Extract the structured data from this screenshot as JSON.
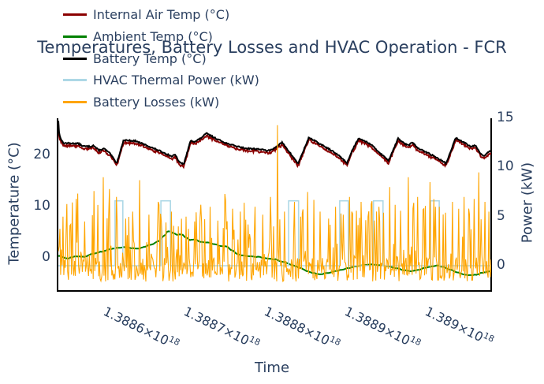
{
  "chart_data": {
    "type": "line",
    "title": "Temperatures, Battery Losses and HVAC Operation - FCR",
    "font_color": "#2a3f5f",
    "axis_line_color": "#000000",
    "plot_background": "#ffffff",
    "grid": "off",
    "legend_position": "top-left",
    "xaxis": {
      "title": "Time",
      "tick_angle_deg": 26,
      "tick_values": [
        "1.3886e18",
        "1.3887e18",
        "1.3888e18",
        "1.3889e18",
        "1.389e18"
      ],
      "ticks": [
        {
          "base": "1.3886×10",
          "exp": "18",
          "anchor_frac": 0.115
        },
        {
          "base": "1.3887×10",
          "exp": "18",
          "anchor_frac": 0.3
        },
        {
          "base": "1.3888×10",
          "exp": "18",
          "anchor_frac": 0.486
        },
        {
          "base": "1.3889×10",
          "exp": "18",
          "anchor_frac": 0.672
        },
        {
          "base": "1.389×10",
          "exp": "18",
          "anchor_frac": 0.858
        }
      ]
    },
    "yaxis_left": {
      "title": "Temperature (°C)",
      "ticks": [
        0,
        10,
        20
      ],
      "range": [
        -6.5,
        27.2
      ]
    },
    "yaxis_right": {
      "title": "Power (kW)",
      "ticks": [
        0,
        5,
        10,
        15
      ],
      "range": [
        -2.6,
        15.0
      ]
    },
    "series": [
      {
        "name": "internal-air-temp",
        "legend_label": "Internal Air Temp (°C)",
        "color": "#8B0000",
        "axis": "left",
        "line_width": 2,
        "render": "keypoints",
        "keypoints_ref": "battery-temp",
        "offset": -0.28,
        "extra_drop": 0.35,
        "jitter": 0.12,
        "seed": 7,
        "samples": 620
      },
      {
        "name": "ambient-temp",
        "legend_label": "Ambient Temp (°C)",
        "color": "#008000",
        "axis": "left",
        "line_width": 2,
        "render": "keypoints",
        "smooth": true,
        "jitter": 0.05,
        "seed": 5,
        "samples": 320,
        "keypoints": [
          [
            0.0,
            0.4
          ],
          [
            0.02,
            -0.1
          ],
          [
            0.04,
            0.3
          ],
          [
            0.06,
            0.2
          ],
          [
            0.08,
            0.8
          ],
          [
            0.1,
            1.2
          ],
          [
            0.12,
            1.7
          ],
          [
            0.14,
            2.0
          ],
          [
            0.155,
            2.1
          ],
          [
            0.17,
            1.9
          ],
          [
            0.185,
            1.8
          ],
          [
            0.2,
            2.2
          ],
          [
            0.215,
            2.6
          ],
          [
            0.23,
            3.2
          ],
          [
            0.245,
            4.3
          ],
          [
            0.252,
            5.1
          ],
          [
            0.258,
            5.2
          ],
          [
            0.265,
            4.8
          ],
          [
            0.275,
            4.5
          ],
          [
            0.285,
            4.6
          ],
          [
            0.295,
            3.9
          ],
          [
            0.305,
            3.5
          ],
          [
            0.315,
            3.6
          ],
          [
            0.33,
            3.1
          ],
          [
            0.345,
            3.0
          ],
          [
            0.36,
            2.7
          ],
          [
            0.375,
            2.3
          ],
          [
            0.39,
            2.2
          ],
          [
            0.4,
            1.5
          ],
          [
            0.415,
            0.7
          ],
          [
            0.43,
            0.4
          ],
          [
            0.445,
            0.3
          ],
          [
            0.46,
            0.2
          ],
          [
            0.475,
            0.0
          ],
          [
            0.49,
            -0.2
          ],
          [
            0.5,
            -0.3
          ],
          [
            0.52,
            -0.8
          ],
          [
            0.54,
            -1.4
          ],
          [
            0.56,
            -2.0
          ],
          [
            0.575,
            -2.6
          ],
          [
            0.59,
            -3.0
          ],
          [
            0.605,
            -3.2
          ],
          [
            0.62,
            -3.0
          ],
          [
            0.64,
            -2.6
          ],
          [
            0.655,
            -2.3
          ],
          [
            0.67,
            -2.0
          ],
          [
            0.685,
            -1.7
          ],
          [
            0.7,
            -1.5
          ],
          [
            0.72,
            -1.3
          ],
          [
            0.74,
            -1.4
          ],
          [
            0.76,
            -1.6
          ],
          [
            0.78,
            -2.0
          ],
          [
            0.8,
            -2.4
          ],
          [
            0.815,
            -2.6
          ],
          [
            0.83,
            -2.4
          ],
          [
            0.845,
            -2.0
          ],
          [
            0.86,
            -1.7
          ],
          [
            0.875,
            -1.5
          ],
          [
            0.89,
            -1.8
          ],
          [
            0.905,
            -2.3
          ],
          [
            0.92,
            -2.8
          ],
          [
            0.935,
            -3.2
          ],
          [
            0.95,
            -3.4
          ],
          [
            0.965,
            -3.3
          ],
          [
            0.98,
            -2.9
          ],
          [
            1.0,
            -2.6
          ]
        ]
      },
      {
        "name": "battery-temp",
        "legend_label": "Battery Temp (°C)",
        "color": "#000000",
        "axis": "left",
        "line_width": 2,
        "render": "keypoints",
        "jitter": 0.12,
        "seed": 13,
        "samples": 620,
        "keypoints": [
          [
            0.0,
            26.8
          ],
          [
            0.002,
            24.0
          ],
          [
            0.011,
            22.4
          ],
          [
            0.047,
            22.3
          ],
          [
            0.056,
            21.8
          ],
          [
            0.075,
            21.7
          ],
          [
            0.08,
            22.0
          ],
          [
            0.093,
            21.0
          ],
          [
            0.106,
            21.3
          ],
          [
            0.12,
            20.3
          ],
          [
            0.131,
            18.9
          ],
          [
            0.135,
            18.5
          ],
          [
            0.151,
            23.0
          ],
          [
            0.178,
            22.8
          ],
          [
            0.202,
            22.0
          ],
          [
            0.239,
            20.7
          ],
          [
            0.262,
            19.8
          ],
          [
            0.27,
            20.1
          ],
          [
            0.28,
            18.6
          ],
          [
            0.29,
            18.3
          ],
          [
            0.306,
            23.0
          ],
          [
            0.315,
            22.6
          ],
          [
            0.33,
            23.4
          ],
          [
            0.342,
            24.3
          ],
          [
            0.366,
            23.2
          ],
          [
            0.393,
            22.2
          ],
          [
            0.43,
            21.4
          ],
          [
            0.466,
            21.2
          ],
          [
            0.484,
            20.9
          ],
          [
            0.494,
            21.1
          ],
          [
            0.506,
            21.9
          ],
          [
            0.517,
            22.5
          ],
          [
            0.535,
            20.5
          ],
          [
            0.554,
            18.4
          ],
          [
            0.579,
            23.5
          ],
          [
            0.603,
            22.3
          ],
          [
            0.63,
            21.0
          ],
          [
            0.652,
            19.7
          ],
          [
            0.667,
            18.5
          ],
          [
            0.679,
            21.0
          ],
          [
            0.694,
            23.4
          ],
          [
            0.721,
            22.2
          ],
          [
            0.749,
            20.0
          ],
          [
            0.763,
            19.0
          ],
          [
            0.785,
            23.3
          ],
          [
            0.798,
            22.4
          ],
          [
            0.809,
            21.9
          ],
          [
            0.818,
            22.6
          ],
          [
            0.83,
            21.4
          ],
          [
            0.858,
            20.3
          ],
          [
            0.885,
            19.0
          ],
          [
            0.896,
            18.4
          ],
          [
            0.918,
            23.4
          ],
          [
            0.94,
            22.4
          ],
          [
            0.954,
            21.7
          ],
          [
            0.963,
            22.0
          ],
          [
            0.976,
            20.3
          ],
          [
            0.985,
            19.9
          ],
          [
            0.993,
            20.6
          ],
          [
            1.0,
            20.9
          ]
        ]
      },
      {
        "name": "hvac-thermal-power",
        "legend_label": "HVAC Thermal Power (kW)",
        "color": "#ADD8E6",
        "axis": "right",
        "line_width": 1.6,
        "render": "pulses",
        "baseline": 0,
        "value": 6.6,
        "pulses": [
          [
            0.131,
            0.149
          ],
          [
            0.237,
            0.259
          ],
          [
            0.532,
            0.555
          ],
          [
            0.65,
            0.67
          ],
          [
            0.728,
            0.75
          ],
          [
            0.86,
            0.88
          ]
        ]
      },
      {
        "name": "battery-losses",
        "legend_label": "Battery Losses (kW)",
        "color": "#FFA500",
        "axis": "right",
        "line_width": 1.1,
        "render": "noise",
        "noise": {
          "seed": 99,
          "count": 560,
          "min": -1.6,
          "max": 0.9,
          "spike_prob": 0.4,
          "spike_max": 7.2
        },
        "major_spikes": [
          [
            0.01,
            5.0
          ],
          [
            0.028,
            4.2
          ],
          [
            0.042,
            6.8
          ],
          [
            0.06,
            4.5
          ],
          [
            0.083,
            7.6
          ],
          [
            0.104,
            9.0
          ],
          [
            0.118,
            7.8
          ],
          [
            0.135,
            7.0
          ],
          [
            0.155,
            4.8
          ],
          [
            0.172,
            5.5
          ],
          [
            0.188,
            8.7
          ],
          [
            0.21,
            5.2
          ],
          [
            0.23,
            6.5
          ],
          [
            0.248,
            4.4
          ],
          [
            0.262,
            5.5
          ],
          [
            0.278,
            4.0
          ],
          [
            0.295,
            5.0
          ],
          [
            0.315,
            4.5
          ],
          [
            0.33,
            6.2
          ],
          [
            0.35,
            6.0
          ],
          [
            0.368,
            4.6
          ],
          [
            0.385,
            7.3
          ],
          [
            0.402,
            5.8
          ],
          [
            0.42,
            5.5
          ],
          [
            0.438,
            4.2
          ],
          [
            0.455,
            6.0
          ],
          [
            0.472,
            5.2
          ],
          [
            0.49,
            7.0
          ],
          [
            0.506,
            14.3
          ],
          [
            0.522,
            5.5
          ],
          [
            0.545,
            6.5
          ],
          [
            0.56,
            5.0
          ],
          [
            0.576,
            7.5
          ],
          [
            0.59,
            6.7
          ],
          [
            0.605,
            5.5
          ],
          [
            0.625,
            4.8
          ],
          [
            0.64,
            6.0
          ],
          [
            0.658,
            5.2
          ],
          [
            0.672,
            7.0
          ],
          [
            0.688,
            5.6
          ],
          [
            0.7,
            6.5
          ],
          [
            0.716,
            5.0
          ],
          [
            0.73,
            4.6
          ],
          [
            0.74,
            6.0
          ],
          [
            0.752,
            5.4
          ],
          [
            0.765,
            8.0
          ],
          [
            0.778,
            6.2
          ],
          [
            0.79,
            5.6
          ],
          [
            0.809,
            9.0
          ],
          [
            0.822,
            6.4
          ],
          [
            0.83,
            7.0
          ],
          [
            0.845,
            5.8
          ],
          [
            0.858,
            8.5
          ],
          [
            0.872,
            6.0
          ],
          [
            0.88,
            6.0
          ],
          [
            0.895,
            5.4
          ],
          [
            0.91,
            6.5
          ],
          [
            0.925,
            5.8
          ],
          [
            0.938,
            7.0
          ],
          [
            0.95,
            5.2
          ],
          [
            0.96,
            6.8
          ],
          [
            0.972,
            9.5
          ],
          [
            0.985,
            6.5
          ],
          [
            0.995,
            5.5
          ]
        ]
      }
    ]
  }
}
